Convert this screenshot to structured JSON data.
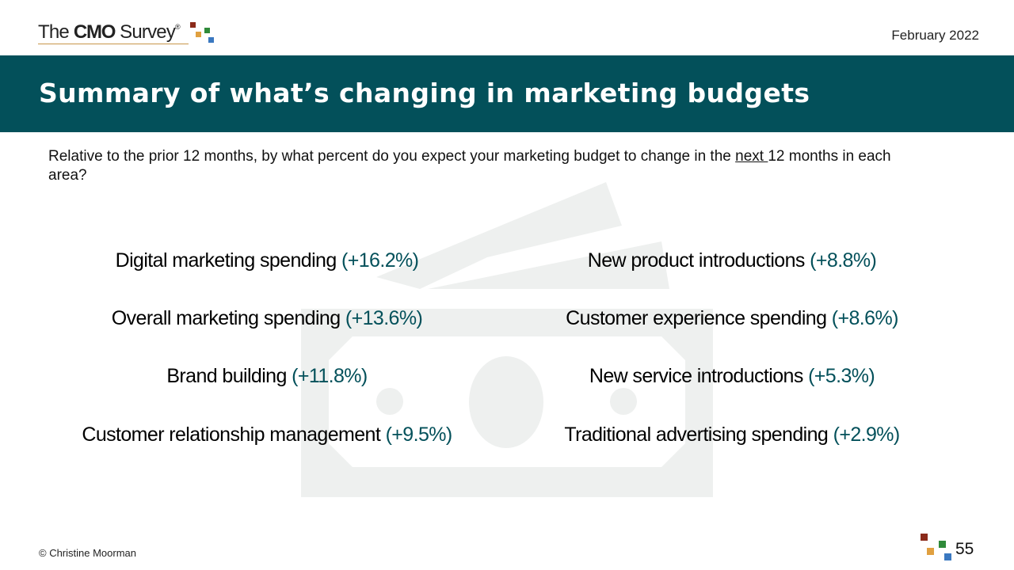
{
  "header": {
    "logo_the": "The",
    "logo_cmo": "CMO",
    "logo_survey": "Survey",
    "logo_registered": "®",
    "date": "February 2022"
  },
  "banner": {
    "title": "Summary of what’s changing in marketing budgets"
  },
  "question": {
    "before": "Relative to the prior 12 months, by what percent do you expect your marketing budget to change in the ",
    "underlined": "next ",
    "after": "12 months in each area?"
  },
  "items": [
    {
      "label": "Digital marketing spending",
      "pct": "(+16.2%)"
    },
    {
      "label": "Overall marketing spending",
      "pct": "(+13.6%)"
    },
    {
      "label": "Brand building",
      "pct": "(+11.8%)"
    },
    {
      "label": "Customer relationship management",
      "pct": "(+9.5%)"
    },
    {
      "label": "New product introductions",
      "pct": "(+8.8%)"
    },
    {
      "label": "Customer experience spending",
      "pct": "(+8.6%)"
    },
    {
      "label": "New service introductions",
      "pct": "(+5.3%)"
    },
    {
      "label": "Traditional advertising spending",
      "pct": "(+2.9%)"
    }
  ],
  "footer": {
    "copyright": "© Christine Moorman",
    "page_number": "55"
  },
  "colors": {
    "banner": "#03505a",
    "accent_pct": "#03505a",
    "logo_red": "#8b2a1a",
    "logo_orange": "#e0a040",
    "logo_green": "#2f8a3a",
    "logo_blue": "#3a78c0",
    "watermark": "#eef0ef"
  },
  "icons": {
    "watermark": "money-bill-icon",
    "footer": "cmo-squares-icon"
  }
}
